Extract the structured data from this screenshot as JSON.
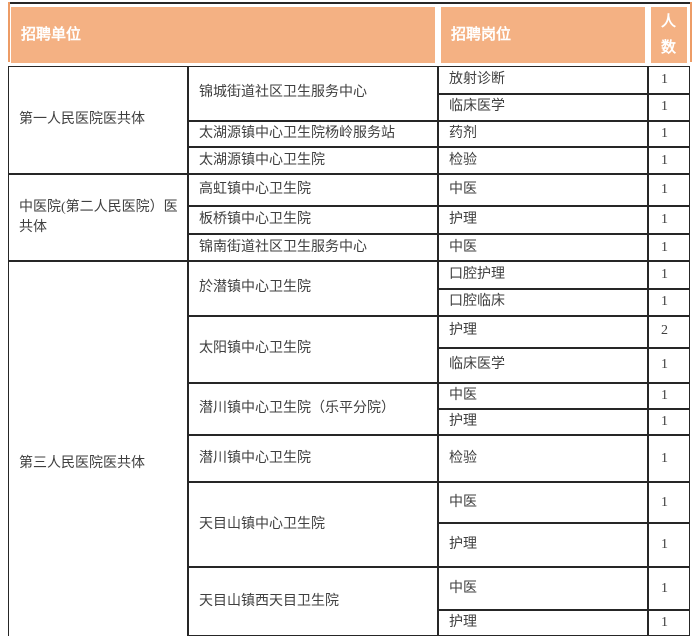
{
  "table": {
    "headers": {
      "unit": "招聘单位",
      "position": "招聘岗位",
      "count": "人数"
    },
    "groups": [
      {
        "name": "第一人民医院医共体",
        "units": [
          {
            "name": "锦城街道社区卫生服务中心",
            "positions": [
              {
                "title": "放射诊断",
                "count": "1"
              },
              {
                "title": "临床医学",
                "count": "1"
              }
            ]
          },
          {
            "name": "太湖源镇中心卫生院杨岭服务站",
            "positions": [
              {
                "title": "药剂",
                "count": "1"
              }
            ]
          },
          {
            "name": "太湖源镇中心卫生院",
            "positions": [
              {
                "title": "检验",
                "count": "1"
              }
            ]
          }
        ]
      },
      {
        "name": "中医院(第二人民医院）医共体",
        "units": [
          {
            "name": "高虹镇中心卫生院",
            "positions": [
              {
                "title": "中医",
                "count": "1"
              }
            ]
          },
          {
            "name": "板桥镇中心卫生院",
            "positions": [
              {
                "title": "护理",
                "count": "1"
              }
            ]
          },
          {
            "name": "锦南街道社区卫生服务中心",
            "positions": [
              {
                "title": "中医",
                "count": "1"
              }
            ]
          }
        ]
      },
      {
        "name": "第三人民医院医共体",
        "units": [
          {
            "name": "於潜镇中心卫生院",
            "positions": [
              {
                "title": "口腔护理",
                "count": "1"
              },
              {
                "title": "口腔临床",
                "count": "1"
              }
            ]
          },
          {
            "name": "太阳镇中心卫生院",
            "positions": [
              {
                "title": "护理",
                "count": "2"
              },
              {
                "title": "临床医学",
                "count": "1"
              }
            ]
          },
          {
            "name": "潜川镇中心卫生院（乐平分院）",
            "positions": [
              {
                "title": "中医",
                "count": "1"
              },
              {
                "title": "护理",
                "count": "1"
              }
            ]
          },
          {
            "name": "潜川镇中心卫生院",
            "positions": [
              {
                "title": "检验",
                "count": "1"
              }
            ]
          },
          {
            "name": "天目山镇中心卫生院",
            "positions": [
              {
                "title": "中医",
                "count": "1"
              },
              {
                "title": "护理",
                "count": "1"
              }
            ]
          },
          {
            "name": "天目山镇西天目卫生院",
            "positions": [
              {
                "title": "中医",
                "count": "1"
              },
              {
                "title": "护理",
                "count": "1"
              }
            ]
          }
        ]
      }
    ]
  },
  "colors": {
    "header_bg": "#F4B183",
    "header_text": "#FFFFFF",
    "frame_border": "#ED9C66",
    "cell_border": "#262626",
    "body_text": "#3F3F3F"
  }
}
